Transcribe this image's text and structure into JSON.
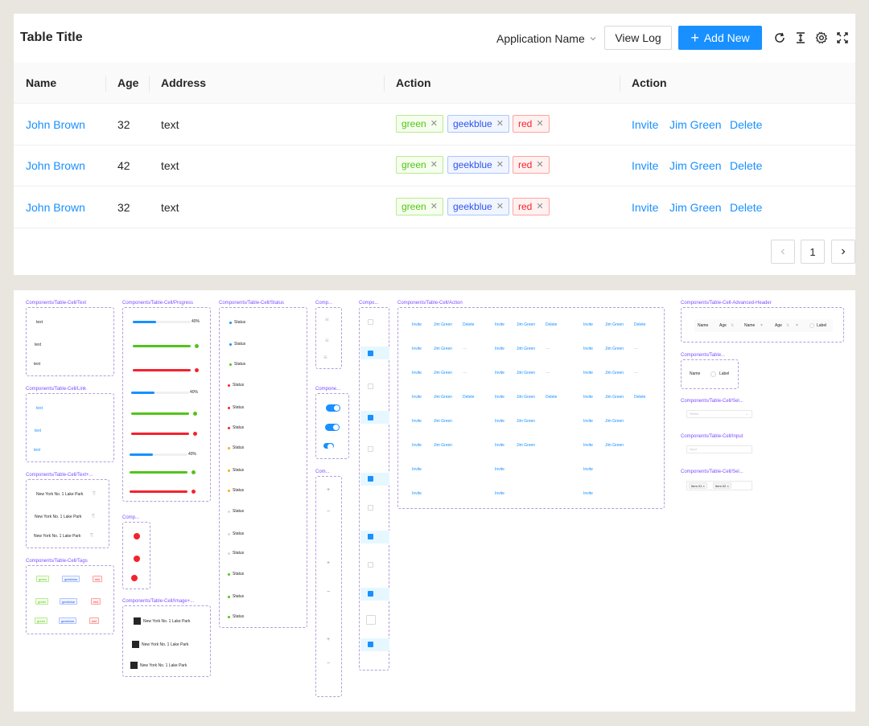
{
  "toolbar": {
    "title": "Table Title",
    "app_select": "Application Name",
    "view_log": "View Log",
    "add_new": "Add New",
    "primary_color": "#1890ff"
  },
  "table": {
    "columns": [
      "Name",
      "Age",
      "Address",
      "Action",
      "Action"
    ],
    "rows": [
      {
        "name": "John Brown",
        "age": "32",
        "address": "text",
        "tags": [
          "green",
          "geekblue",
          "red"
        ],
        "actions": [
          "Invite",
          "Jim Green",
          "Delete"
        ]
      },
      {
        "name": "John Brown",
        "age": "42",
        "address": "text",
        "tags": [
          "green",
          "geekblue",
          "red"
        ],
        "actions": [
          "Invite",
          "Jim Green",
          "Delete"
        ]
      },
      {
        "name": "John Brown",
        "age": "32",
        "address": "text",
        "tags": [
          "green",
          "geekblue",
          "red"
        ],
        "actions": [
          "Invite",
          "Jim Green",
          "Delete"
        ]
      }
    ]
  },
  "pagination": {
    "current": "1"
  },
  "components": {
    "text_label": "Components/Table-Cell/Text",
    "progress_label": "Components/Table-Cell/Progress",
    "status_label": "Components/Table-Cell/Status",
    "comp_short": "Comp...",
    "compo_short": "Compo...",
    "compone_short": "Compone...",
    "com_short": "Com...",
    "action_label": "Components/Table-Cell/Action",
    "adv_header_label": "Components/Table-Cell-Advanced-Header",
    "link_label": "Components/Table-Cell/Link",
    "text_plus_label": "Components/Table-Cell/Text+...",
    "tags_label": "Components/Table-Cell/Tags",
    "image_label": "Components/Table-Cell/Image+...",
    "table_short": "Components/Table...",
    "sel_short": "Components/Table-Cell/Sel...",
    "input_label": "Components/Table-Cell/Input",
    "sel2_short": "Components/Table-Cell/Sel...",
    "text_items": [
      "text",
      "text",
      "text"
    ],
    "link_items": [
      "text",
      "text",
      "text"
    ],
    "progress_pct": "40%",
    "progress_values": [
      0.4,
      1.0,
      1.0,
      0.4,
      1.0,
      1.0,
      0.4,
      1.0,
      1.0
    ],
    "status_text": "Status",
    "address_text": "New York No. 1 Lake Park",
    "mini_tags": [
      "green",
      "geekblue",
      "red"
    ],
    "action_invite": "Invite",
    "action_jim": "Jim Green",
    "action_delete": "Delete",
    "action_more": "···",
    "adv_header": {
      "name": "Name",
      "age": "Age",
      "label": "Label"
    },
    "select_placeholder": "Select",
    "input_placeholder": "Input",
    "item1": "Item 01",
    "item2": "Item 02"
  }
}
